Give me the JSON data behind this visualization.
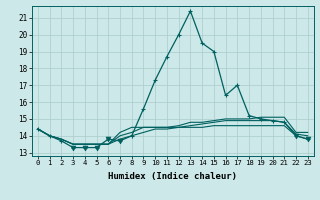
{
  "title": "",
  "xlabel": "Humidex (Indice chaleur)",
  "x": [
    0,
    1,
    2,
    3,
    4,
    5,
    6,
    7,
    8,
    9,
    10,
    11,
    12,
    13,
    14,
    15,
    16,
    17,
    18,
    19,
    20,
    21,
    22,
    23
  ],
  "line1": [
    14.4,
    14.0,
    13.7,
    13.3,
    13.3,
    13.3,
    13.8,
    13.7,
    14.0,
    15.6,
    17.3,
    18.7,
    20.0,
    21.4,
    19.5,
    19.0,
    16.4,
    17.0,
    15.2,
    15.0,
    14.9,
    14.8,
    14.0,
    13.8
  ],
  "line2": [
    14.4,
    14.0,
    13.8,
    13.5,
    13.5,
    13.5,
    13.5,
    14.2,
    14.5,
    14.5,
    14.5,
    14.5,
    14.6,
    14.8,
    14.8,
    14.9,
    15.0,
    15.0,
    15.0,
    15.1,
    15.1,
    15.1,
    14.2,
    14.2
  ],
  "line3": [
    14.4,
    14.0,
    13.8,
    13.5,
    13.5,
    13.5,
    13.5,
    14.0,
    14.2,
    14.5,
    14.5,
    14.5,
    14.5,
    14.6,
    14.7,
    14.8,
    14.9,
    14.9,
    14.9,
    14.9,
    14.9,
    14.8,
    14.1,
    14.0
  ],
  "line4": [
    14.4,
    14.0,
    13.8,
    13.5,
    13.5,
    13.5,
    13.5,
    13.8,
    14.0,
    14.2,
    14.4,
    14.4,
    14.5,
    14.5,
    14.5,
    14.6,
    14.6,
    14.6,
    14.6,
    14.6,
    14.6,
    14.6,
    14.0,
    13.8
  ],
  "ylim": [
    12.8,
    21.7
  ],
  "yticks": [
    13,
    14,
    15,
    16,
    17,
    18,
    19,
    20,
    21
  ],
  "bg_color": "#cce8e8",
  "line_color": "#006060",
  "grid_color": "#aacccc",
  "triangle_x": [
    3,
    4,
    5,
    6,
    7,
    22,
    23
  ]
}
